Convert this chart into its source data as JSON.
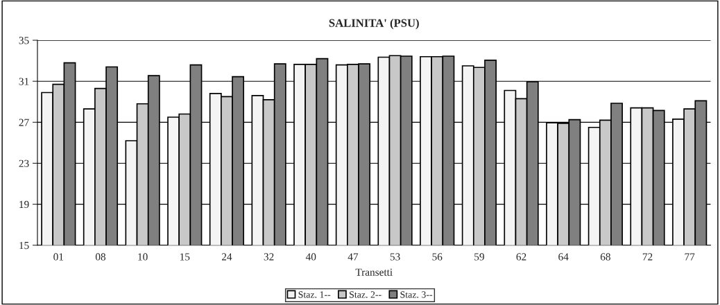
{
  "chart_data": {
    "type": "bar",
    "title": "SALINITA' (PSU)",
    "xlabel": "Transetti",
    "categories": [
      "01",
      "08",
      "10",
      "15",
      "24",
      "32",
      "40",
      "47",
      "53",
      "56",
      "59",
      "62",
      "64",
      "68",
      "72",
      "77"
    ],
    "series": [
      {
        "name": "Staz. 1--",
        "color": "#f4f4f4",
        "values": [
          29.9,
          28.3,
          25.2,
          27.5,
          29.8,
          29.6,
          32.65,
          32.6,
          33.35,
          33.4,
          32.5,
          30.1,
          26.95,
          26.5,
          28.4,
          27.3
        ]
      },
      {
        "name": "Staz. 2--",
        "color": "#c8c8c8",
        "values": [
          30.7,
          30.3,
          28.8,
          27.8,
          29.5,
          29.2,
          32.65,
          32.65,
          33.5,
          33.4,
          32.35,
          29.3,
          26.9,
          27.2,
          28.4,
          28.3
        ]
      },
      {
        "name": "Staz. 3--",
        "color": "#808080",
        "values": [
          32.8,
          32.4,
          31.55,
          32.6,
          31.45,
          32.7,
          33.2,
          32.7,
          33.45,
          33.45,
          33.05,
          30.95,
          27.25,
          28.85,
          28.15,
          29.1
        ]
      }
    ],
    "ylim": [
      15,
      35
    ],
    "yticks": [
      15,
      19,
      23,
      27,
      31,
      35
    ],
    "grid": "y",
    "legend": "bottom"
  }
}
